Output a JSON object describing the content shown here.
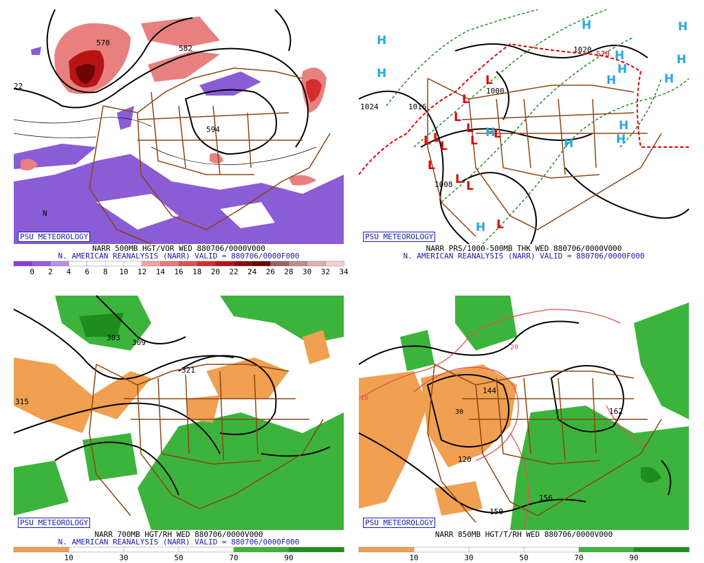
{
  "panels": [
    {
      "id": "tl",
      "badge": "PSU METEOROLOGY",
      "line1": "NARR 500MB HGT/VOR WED 880706/0000V000",
      "line2": "N. AMERICAN REANALYSIS (NARR) VALID = 880706/0000F000",
      "map_labels": [
        "582",
        "594",
        "570",
        "22",
        "N"
      ],
      "colorbar": {
        "ticks": [
          "0",
          "2",
          "4",
          "6",
          "8",
          "10",
          "12",
          "14",
          "16",
          "18",
          "20",
          "22",
          "24",
          "26",
          "28",
          "30",
          "32",
          "34"
        ],
        "colors": [
          "#8a3cd8",
          "#9a5ae0",
          "#b890ea",
          "#ffffff",
          "#ffffff",
          "#ffffff",
          "#ffffff",
          "#f1a3a3",
          "#e97a7a",
          "#df5050",
          "#d22e2e",
          "#b81414",
          "#8e0a0a",
          "#6d0505",
          "#a06060",
          "#c08c8c",
          "#e0b0b0",
          "#f5d0d0"
        ]
      }
    },
    {
      "id": "tr",
      "badge": "PSU METEOROLOGY",
      "line1": "NARR PRS/1000-500MB THK WED 880706/0000V000",
      "line2": "N. AMERICAN REANALYSIS (NARR) VALID = 880706/0000F000",
      "map_labels": [
        "1024",
        "1016",
        "1008",
        "1000",
        "1020",
        "570",
        "H",
        "L"
      ]
    },
    {
      "id": "bl",
      "badge": "PSU METEOROLOGY",
      "line1": "NARR 700MB HGT/RH WED 880706/0000V000",
      "line2": "N. AMERICAN REANALYSIS (NARR) VALID = 880706/0000F000",
      "map_labels": [
        "315",
        "303",
        "309",
        "321"
      ],
      "colorbar": {
        "ticks": [
          "10",
          "30",
          "50",
          "70",
          "90"
        ],
        "colors": [
          "#f0a050",
          "#ffffff",
          "#ffffff",
          "#ffffff",
          "#3cb43c",
          "#1e8c1e"
        ]
      }
    },
    {
      "id": "br",
      "badge": "PSU METEOROLOGY",
      "line1": "NARR 850MB HGT/T/RH WED 880706/0000V000",
      "line2": "",
      "map_labels": [
        "10",
        "20",
        "30",
        "144",
        "150",
        "156",
        "162",
        "120"
      ],
      "colorbar": {
        "ticks": [
          "10",
          "30",
          "50",
          "70",
          "90"
        ],
        "colors": [
          "#f0a050",
          "#ffffff",
          "#ffffff",
          "#ffffff",
          "#3cb43c",
          "#1e8c1e"
        ]
      }
    }
  ],
  "colors": {
    "purple": "#8a5cd6",
    "red_light": "#e88080",
    "red_dark": "#8e0a0a",
    "orange": "#f0a050",
    "green": "#3cb43c",
    "green_dark": "#1e8c1e",
    "border_brown": "#8b4513",
    "high_blue": "#2aa8e0",
    "low_red": "#e00000"
  }
}
